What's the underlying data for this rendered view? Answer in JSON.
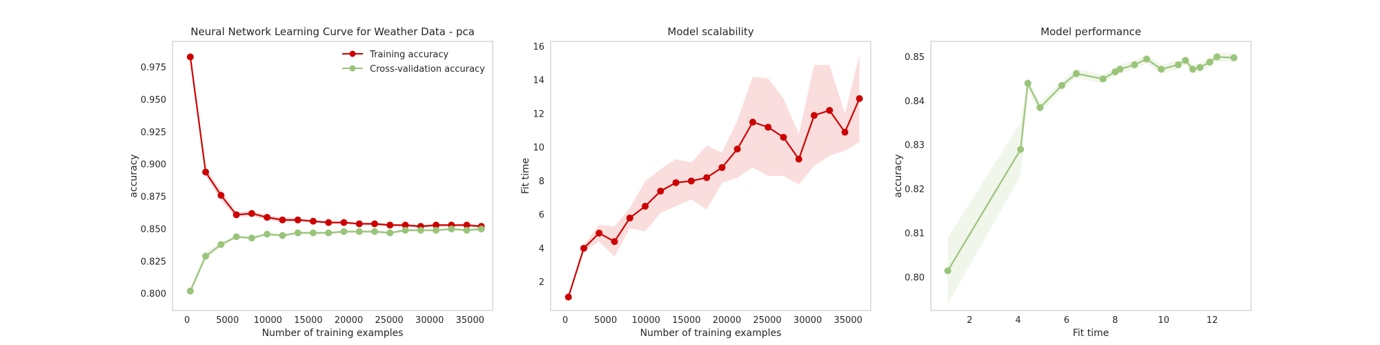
{
  "colors": {
    "training": "#cc0000",
    "cv": "#99c47a",
    "training_band": "#f6c6c6",
    "cv_band": "#e4efd9",
    "frame": "#cccccc"
  },
  "chart_data": [
    {
      "type": "line",
      "title": "Neural Network Learning Curve for Weather Data - pca",
      "xlabel": "Number of training examples",
      "ylabel": "accuracy",
      "xlim": [
        -1800,
        37800
      ],
      "ylim": [
        0.787,
        0.995
      ],
      "xticks": [
        0,
        5000,
        10000,
        15000,
        20000,
        25000,
        30000,
        35000
      ],
      "xtick_labels": [
        "0",
        "5000",
        "10000",
        "15000",
        "20000",
        "25000",
        "30000",
        "35000"
      ],
      "yticks": [
        0.8,
        0.825,
        0.85,
        0.875,
        0.9,
        0.925,
        0.95,
        0.975
      ],
      "ytick_labels": [
        "0.800",
        "0.825",
        "0.850",
        "0.875",
        "0.900",
        "0.925",
        "0.950",
        "0.975"
      ],
      "grid": false,
      "legend": "top-right",
      "x": [
        400,
        2300,
        4200,
        6100,
        8000,
        9900,
        11800,
        13700,
        15600,
        17500,
        19400,
        21300,
        23200,
        25100,
        27000,
        28900,
        30800,
        32700,
        34600,
        36400
      ],
      "series": [
        {
          "name": "Training accuracy",
          "color_key": "training",
          "values": [
            0.983,
            0.894,
            0.876,
            0.861,
            0.862,
            0.859,
            0.857,
            0.857,
            0.856,
            0.855,
            0.855,
            0.854,
            0.854,
            0.853,
            0.853,
            0.852,
            0.853,
            0.853,
            0.853,
            0.852
          ],
          "band": [
            0.0,
            0.003,
            0.004,
            0.002,
            0.002,
            0.002,
            0.002,
            0.001,
            0.001,
            0.001,
            0.001,
            0.001,
            0.001,
            0.001,
            0.001,
            0.001,
            0.001,
            0.001,
            0.001,
            0.001
          ]
        },
        {
          "name": "Cross-validation accuracy",
          "color_key": "cv",
          "values": [
            0.802,
            0.829,
            0.838,
            0.844,
            0.843,
            0.846,
            0.845,
            0.847,
            0.847,
            0.847,
            0.848,
            0.848,
            0.848,
            0.847,
            0.849,
            0.849,
            0.849,
            0.85,
            0.849,
            0.85
          ],
          "band": [
            0.002,
            0.003,
            0.002,
            0.001,
            0.001,
            0.001,
            0.001,
            0.001,
            0.001,
            0.001,
            0.001,
            0.001,
            0.001,
            0.001,
            0.001,
            0.001,
            0.001,
            0.001,
            0.001,
            0.001
          ]
        }
      ]
    },
    {
      "type": "line",
      "title": "Model scalability",
      "xlabel": "Number of training examples",
      "ylabel": "Fit time",
      "xlim": [
        -1800,
        37800
      ],
      "ylim": [
        0.3,
        16.3
      ],
      "xticks": [
        0,
        5000,
        10000,
        15000,
        20000,
        25000,
        30000,
        35000
      ],
      "xtick_labels": [
        "0",
        "5000",
        "10000",
        "15000",
        "20000",
        "25000",
        "30000",
        "35000"
      ],
      "yticks": [
        2,
        4,
        6,
        8,
        10,
        12,
        14,
        16
      ],
      "ytick_labels": [
        "2",
        "4",
        "6",
        "8",
        "10",
        "12",
        "14",
        "16"
      ],
      "grid": false,
      "x": [
        400,
        2300,
        4200,
        6100,
        8000,
        9900,
        11800,
        13700,
        15600,
        17500,
        19400,
        21300,
        23200,
        25100,
        27000,
        28900,
        30800,
        32700,
        34600,
        36400
      ],
      "series": [
        {
          "color_key": "training",
          "values": [
            1.1,
            4.0,
            4.9,
            4.4,
            5.8,
            6.5,
            7.4,
            7.9,
            8.0,
            8.2,
            8.8,
            9.9,
            11.5,
            11.2,
            10.6,
            9.3,
            11.9,
            12.2,
            10.9,
            12.9
          ],
          "band": [
            0.1,
            0.2,
            0.5,
            0.9,
            0.6,
            1.5,
            1.3,
            1.4,
            1.1,
            1.9,
            0.9,
            1.7,
            2.7,
            2.9,
            2.3,
            1.5,
            3.0,
            2.7,
            1.1,
            2.6
          ]
        }
      ]
    },
    {
      "type": "line",
      "title": "Model performance",
      "xlabel": "Fit time",
      "ylabel": "accuracy",
      "xlim": [
        0.4,
        13.6
      ],
      "ylim": [
        0.7925,
        0.8535
      ],
      "xticks": [
        2,
        4,
        6,
        8,
        10,
        12
      ],
      "xtick_labels": [
        "2",
        "4",
        "6",
        "8",
        "10",
        "12"
      ],
      "yticks": [
        0.8,
        0.81,
        0.82,
        0.83,
        0.84,
        0.85
      ],
      "ytick_labels": [
        "0.80",
        "0.81",
        "0.82",
        "0.83",
        "0.84",
        "0.85"
      ],
      "grid": false,
      "series": [
        {
          "color_key": "cv",
          "x": [
            1.1,
            4.1,
            4.4,
            4.9,
            5.8,
            6.4,
            7.5,
            8.0,
            8.2,
            8.8,
            9.3,
            9.9,
            10.6,
            10.9,
            11.2,
            11.5,
            11.9,
            12.2,
            12.9
          ],
          "values": [
            0.8015,
            0.829,
            0.844,
            0.8385,
            0.8435,
            0.8462,
            0.845,
            0.8466,
            0.8472,
            0.8482,
            0.8495,
            0.8472,
            0.8482,
            0.8492,
            0.8472,
            0.8476,
            0.8488,
            0.85,
            0.8498
          ],
          "band": [
            0.0075,
            0.006,
            0.0015,
            0.0012,
            0.001,
            0.001,
            0.001,
            0.001,
            0.001,
            0.001,
            0.001,
            0.001,
            0.001,
            0.001,
            0.001,
            0.001,
            0.001,
            0.001,
            0.001
          ]
        }
      ]
    }
  ]
}
